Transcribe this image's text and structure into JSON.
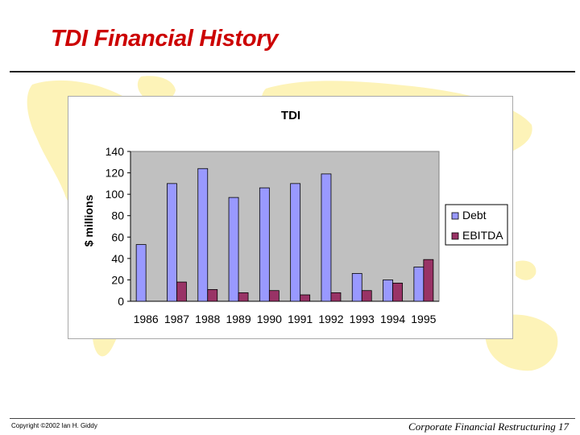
{
  "slide": {
    "title": "TDI Financial History",
    "copyright": "Copyright ©2002 Ian H. Giddy",
    "course": "Corporate Financial Restructuring 17"
  },
  "colors": {
    "title": "#cc0000",
    "debt": "#9999ff",
    "ebitda": "#993366",
    "plot_bg": "#c0c0c0",
    "map": "#fdf3b8"
  },
  "chart_data": {
    "type": "bar",
    "title": "TDI",
    "xlabel": "",
    "ylabel": "$ millions",
    "categories": [
      "1986",
      "1987",
      "1988",
      "1989",
      "1990",
      "1991",
      "1992",
      "1993",
      "1994",
      "1995"
    ],
    "series": [
      {
        "name": "Debt",
        "values": [
          53,
          110,
          124,
          97,
          106,
          110,
          119,
          26,
          20,
          32
        ]
      },
      {
        "name": "EBITDA",
        "values": [
          0,
          18,
          11,
          8,
          10,
          6,
          8,
          10,
          17,
          39
        ]
      }
    ],
    "ylim": [
      0,
      140
    ],
    "yticks": [
      0,
      20,
      40,
      60,
      80,
      100,
      120,
      140
    ],
    "grid": false,
    "legend": "right"
  }
}
